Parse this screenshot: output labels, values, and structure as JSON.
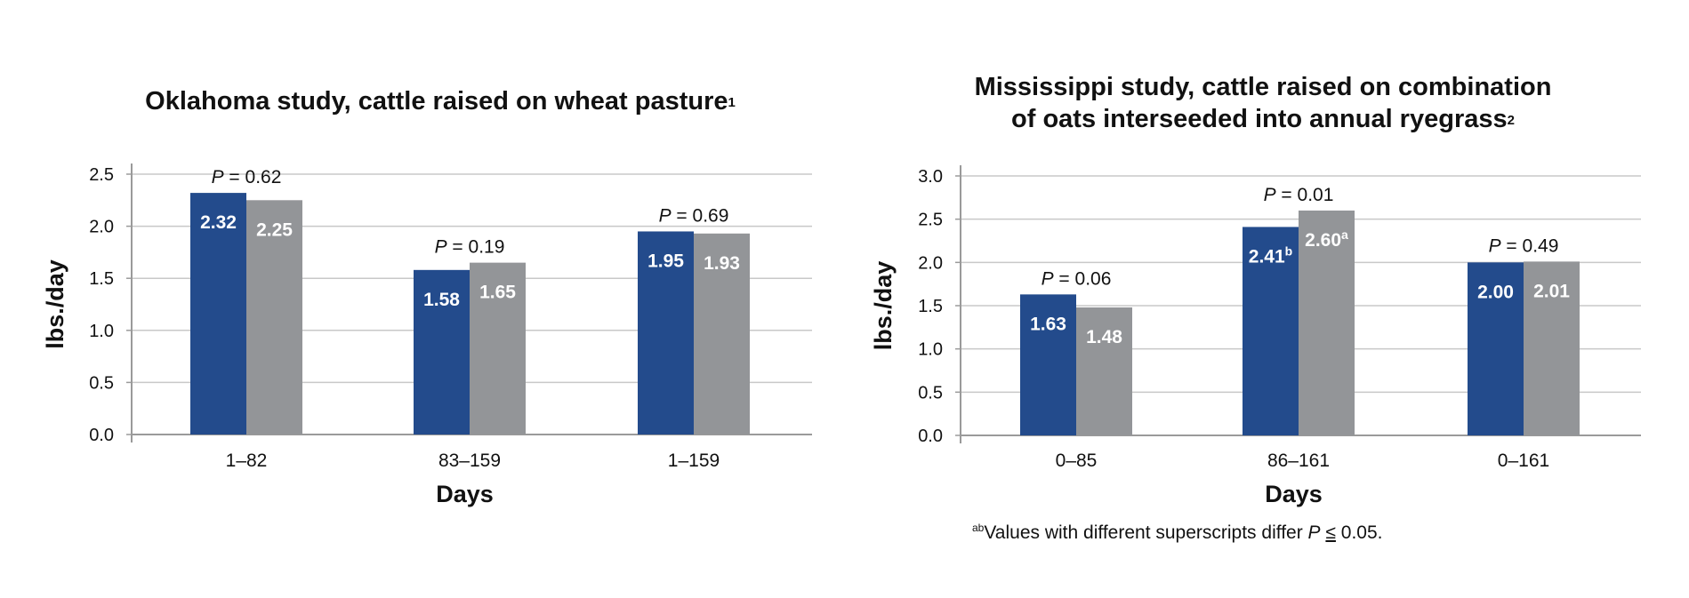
{
  "colors": {
    "series_a": "#234b8c",
    "series_b": "#939598",
    "grid": "#c8c8c8",
    "axis": "#9a9a9a"
  },
  "footnote": {
    "sup": "ab",
    "text": "Values with different superscripts differ ",
    "p": "P",
    "cmp": "≤",
    "val": " 0.05."
  },
  "chart_data": [
    {
      "type": "bar",
      "title": "Oklahoma study, cattle raised on wheat pasture",
      "title_sup": "1",
      "xlabel": "Days",
      "ylabel": "lbs./day",
      "ylim": [
        0,
        2.5
      ],
      "yticks": [
        "0.0",
        "0.5",
        "1.0",
        "1.5",
        "2.0",
        "2.5"
      ],
      "categories": [
        "1–82",
        "83–159",
        "1–159"
      ],
      "p_values": [
        "0.62",
        "0.19",
        "0.69"
      ],
      "series": [
        {
          "values": [
            2.32,
            1.58,
            1.95
          ],
          "labels": [
            "2.32",
            "1.58",
            "1.95"
          ],
          "sups": [
            "",
            "",
            ""
          ]
        },
        {
          "values": [
            2.25,
            1.65,
            1.93
          ],
          "labels": [
            "2.25",
            "1.65",
            "1.93"
          ],
          "sups": [
            "",
            "",
            ""
          ]
        }
      ],
      "grid": true,
      "legend": "none"
    },
    {
      "type": "bar",
      "title": "Mississippi study, cattle raised on combination of oats interseeded into annual ryegrass",
      "title_line1": "Mississippi study, cattle raised on combination",
      "title_line2": "of oats interseeded into annual ryegrass",
      "title_sup": "2",
      "xlabel": "Days",
      "ylabel": "lbs./day",
      "ylim": [
        0,
        3.0
      ],
      "yticks": [
        "0.0",
        "0.5",
        "1.0",
        "1.5",
        "2.0",
        "2.5",
        "3.0"
      ],
      "categories": [
        "0–85",
        "86–161",
        "0–161"
      ],
      "p_values": [
        "0.06",
        "0.01",
        "0.49"
      ],
      "series": [
        {
          "values": [
            1.63,
            2.41,
            2.0
          ],
          "labels": [
            "1.63",
            "2.41",
            "2.00"
          ],
          "sups": [
            "",
            "b",
            ""
          ]
        },
        {
          "values": [
            1.48,
            2.6,
            2.01
          ],
          "labels": [
            "1.48",
            "2.60",
            "2.01"
          ],
          "sups": [
            "",
            "a",
            ""
          ]
        }
      ],
      "grid": true,
      "legend": "none"
    }
  ]
}
